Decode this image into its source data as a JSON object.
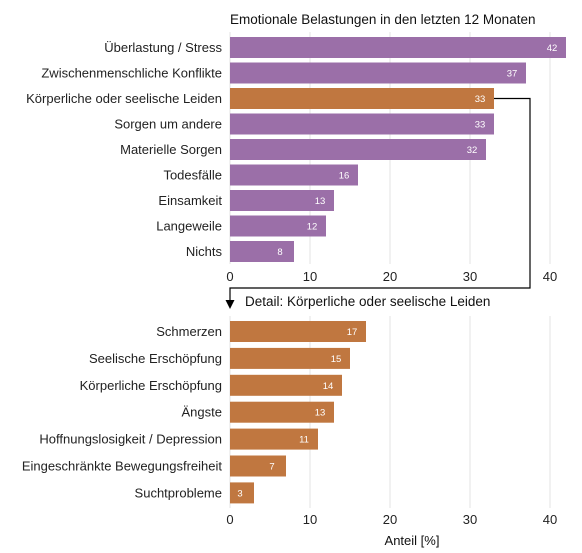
{
  "chart_data": [
    {
      "type": "bar",
      "orientation": "horizontal",
      "title": "Emotionale Belastungen in den letzten 12 Monaten",
      "categories": [
        "Überlastung / Stress",
        "Zwischenmenschliche Konflikte",
        "Körperliche oder seelische Leiden",
        "Sorgen um andere",
        "Materielle Sorgen",
        "Todesfälle",
        "Einsamkeit",
        "Langeweile",
        "Nichts"
      ],
      "values": [
        42,
        37,
        33,
        33,
        32,
        16,
        13,
        12,
        8
      ],
      "highlight_index": 2,
      "xticks": [
        0,
        10,
        20,
        30,
        40
      ],
      "xlim": [
        0,
        42
      ],
      "grid": true
    },
    {
      "type": "bar",
      "orientation": "horizontal",
      "title": "Detail: Körperliche oder seelische Leiden",
      "categories": [
        "Schmerzen",
        "Seelische Erschöpfung",
        "Körperliche Erschöpfung",
        "Ängste",
        "Hoffnungslosigkeit / Depression",
        "Eingeschränkte Bewegungsfreiheit",
        "Suchtprobleme"
      ],
      "values": [
        17,
        15,
        14,
        13,
        11,
        7,
        3
      ],
      "xticks": [
        0,
        10,
        20,
        30,
        40
      ],
      "xlim": [
        0,
        42
      ],
      "xlabel": "Anteil [%]",
      "grid": true
    }
  ],
  "colors": {
    "main": "#9b6fa8",
    "highlight": "#c07740",
    "detail": "#c07740",
    "connector": "#000000"
  }
}
